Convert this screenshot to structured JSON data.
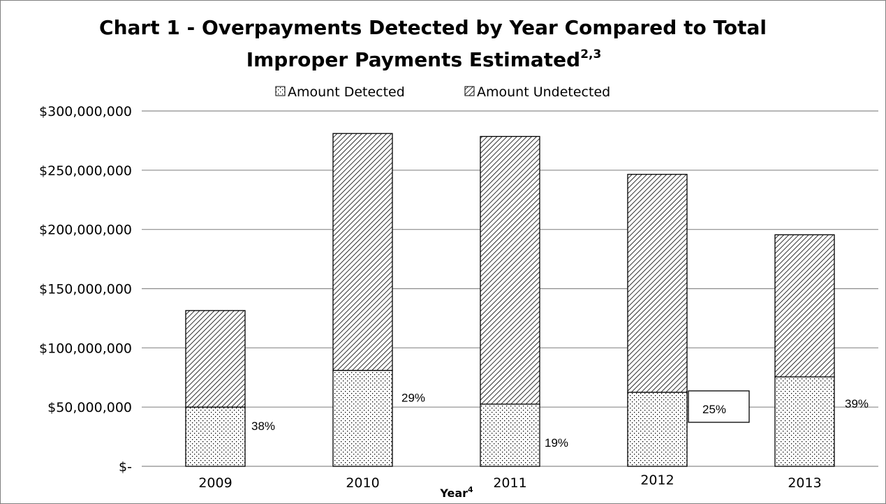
{
  "chart_data": {
    "type": "bar",
    "stacked": true,
    "title_line1": "Chart 1 - Overpayments Detected by Year Compared to Total",
    "title_line2": "Improper Payments Estimated",
    "title_superscript": "2,3",
    "xlabel": "Year",
    "xlabel_superscript": "4",
    "ylabel": "",
    "ylim": [
      0,
      300000000
    ],
    "y_ticks": [
      0,
      50000000,
      100000000,
      150000000,
      200000000,
      250000000,
      300000000
    ],
    "y_tick_labels": [
      "$-",
      "$50,000,000",
      "$100,000,000",
      "$150,000,000",
      "$200,000,000",
      "$250,000,000",
      "$300,000,000"
    ],
    "categories": [
      "2009",
      "2010",
      "2011",
      "2012",
      "2013"
    ],
    "series": [
      {
        "name": "Amount Detected",
        "pattern": "dotted",
        "values": [
          50000000,
          81000000,
          52500000,
          62500000,
          75500000
        ]
      },
      {
        "name": "Amount Undetected",
        "pattern": "diagonal-hatch",
        "values": [
          81500000,
          200000000,
          226000000,
          184000000,
          120000000
        ]
      }
    ],
    "percent_labels": [
      "38%",
      "29%",
      "19%",
      "25%",
      "39%"
    ],
    "legend_position": "top-center",
    "grid": true,
    "colors": {
      "stroke": "#000000",
      "grid": "#8c8c8c",
      "fill": "#ffffff"
    }
  }
}
